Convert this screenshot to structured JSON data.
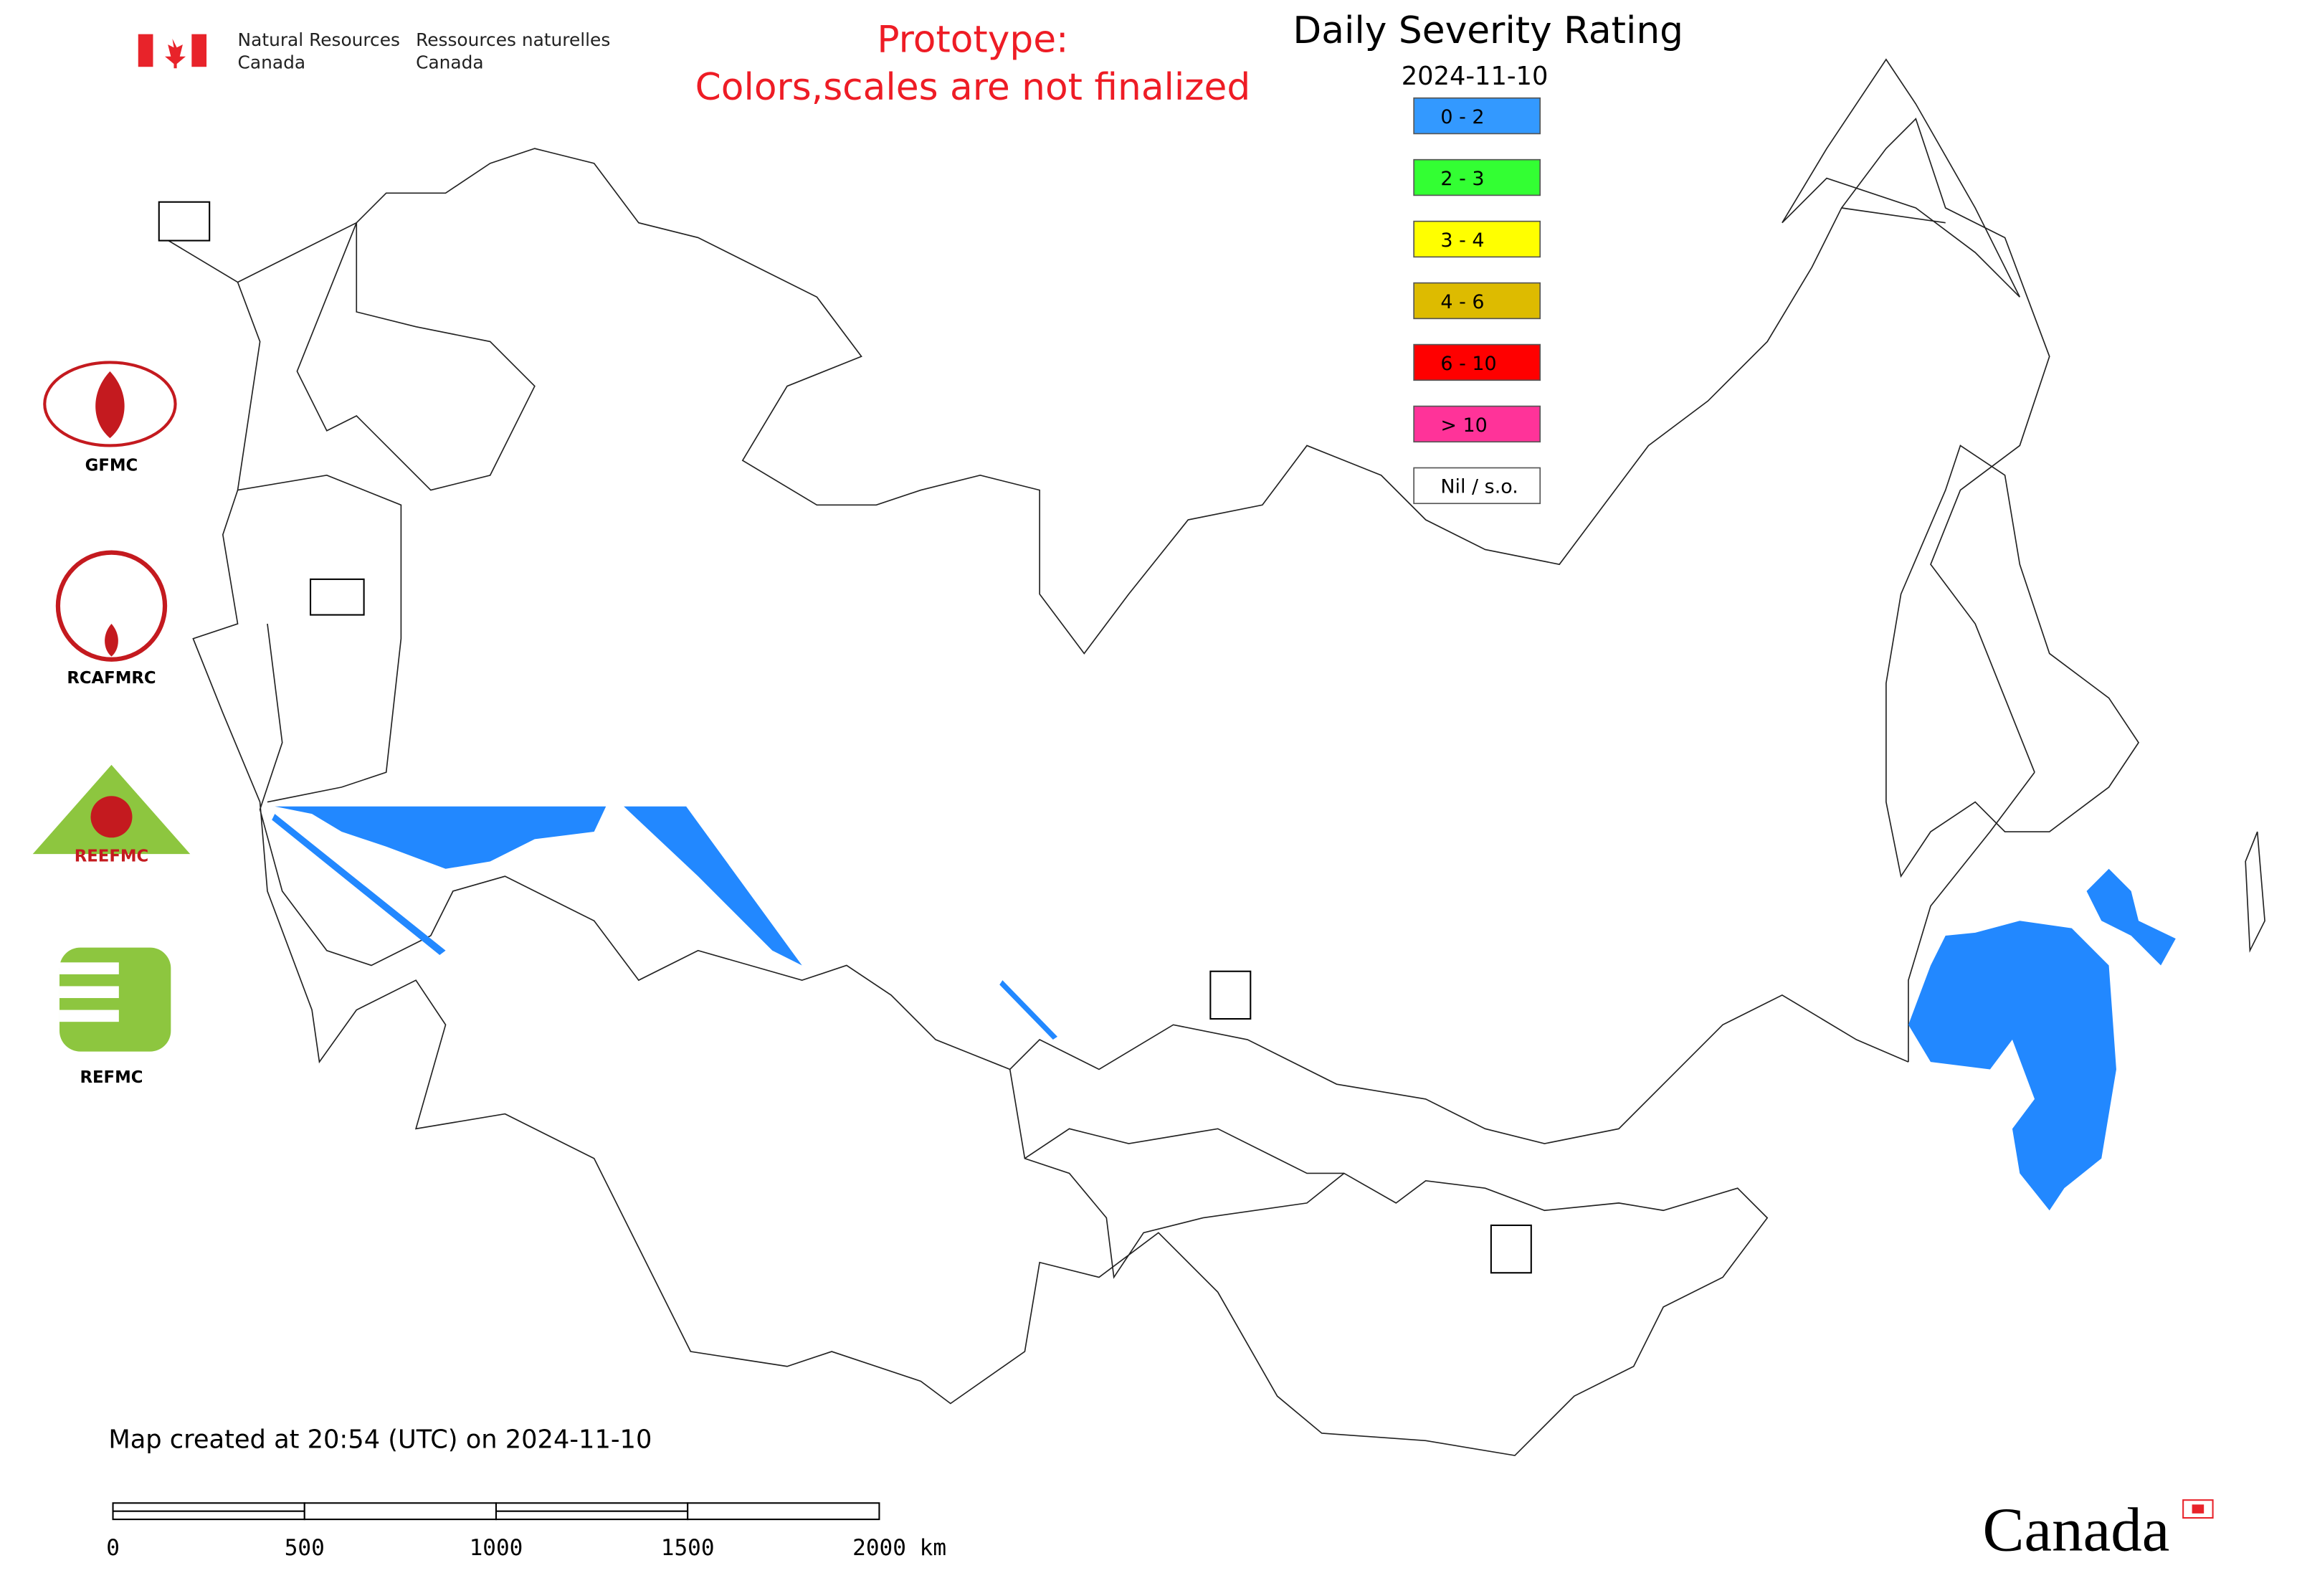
{
  "header": {
    "agency_en": [
      "Natural Resources",
      "Canada"
    ],
    "agency_fr": [
      "Ressources naturelles",
      "Canada"
    ]
  },
  "notice": [
    "Prototype:",
    "Colors,scales are not finalized"
  ],
  "title": "Daily Severity Rating",
  "date": "2024-11-10",
  "legend": [
    {
      "label": "0 - 2",
      "color": "#3399ff"
    },
    {
      "label": "2 - 3",
      "color": "#33ff33"
    },
    {
      "label": "3 - 4",
      "color": "#ffff00"
    },
    {
      "label": "4 - 6",
      "color": "#ddbb00"
    },
    {
      "label": "6 - 10",
      "color": "#ff0000"
    },
    {
      "label": "> 10",
      "color": "#ff3399"
    },
    {
      "label": "Nil / s.o.",
      "color": "#ffffff"
    }
  ],
  "logos": [
    "GFMC",
    "RCAFMRC",
    "REEFMC",
    "REFMC"
  ],
  "footer": "Map created at 20:54 (UTC) on 2024-11-10",
  "scale_bar": [
    "0",
    "500",
    "1000",
    "1500",
    "2000 km"
  ],
  "wordmark": "Canada"
}
